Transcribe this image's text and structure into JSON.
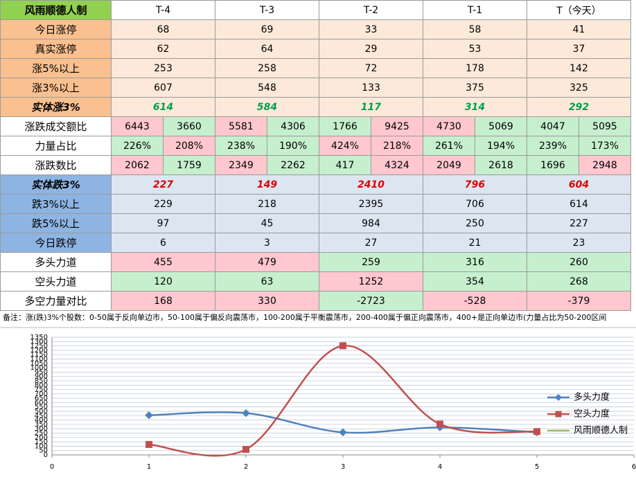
{
  "table": {
    "header": [
      "风雨顺德人制",
      "T-4",
      "T-3",
      "T-2",
      "T-1",
      "T（今天）"
    ],
    "header_fill": "#92d050",
    "rows": [
      {
        "label": "今日涨停",
        "label_fill": "#fac090",
        "values": [
          68,
          69,
          33,
          58,
          41
        ],
        "fills": [
          "#fde9d9",
          "#fde9d9",
          "#fde9d9",
          "#fde9d9",
          "#fde9d9"
        ]
      },
      {
        "label": "真实涨停",
        "label_fill": "#fac090",
        "values": [
          62,
          64,
          29,
          53,
          37
        ],
        "fills": [
          "#fde9d9",
          "#fde9d9",
          "#fde9d9",
          "#fde9d9",
          "#fde9d9"
        ]
      },
      {
        "label": "涨5%以上",
        "label_fill": "#fac090",
        "values": [
          253,
          258,
          72,
          178,
          142
        ],
        "fills": [
          "#fde9d9",
          "#fde9d9",
          "#fde9d9",
          "#fde9d9",
          "#fde9d9"
        ]
      },
      {
        "label": "涨3%以上",
        "label_fill": "#fac090",
        "values": [
          607,
          548,
          133,
          375,
          325
        ],
        "fills": [
          "#fde9d9",
          "#fde9d9",
          "#fde9d9",
          "#fde9d9",
          "#fde9d9"
        ]
      },
      {
        "label": "实体涨3%",
        "label_fill": "#fac090",
        "bold": true,
        "italic": true,
        "color": "#00a050",
        "values": [
          614,
          584,
          117,
          314,
          292
        ],
        "fills": [
          "#fde9d9",
          "#fde9d9",
          "#fde9d9",
          "#fde9d9",
          "#fde9d9"
        ]
      },
      {
        "label": "涨跌成交额比",
        "label_fill": "#ffffff",
        "values": [
          6443,
          3660,
          5581,
          4306,
          1766,
          9425,
          4730,
          5069,
          4047,
          5095
        ],
        "fills": [
          "#ffc7ce",
          "#c6efce",
          "#ffc7ce",
          "#c6efce",
          "#c6efce",
          "#ffc7ce",
          "#ffc7ce",
          "#c6efce",
          "#c6efce",
          "#c6efce"
        ]
      },
      {
        "label": "力量占比",
        "label_fill": "#ffffff",
        "values": [
          "226%",
          "208%",
          "238%",
          "190%",
          "424%",
          "218%",
          "261%",
          "194%",
          "239%",
          "173%"
        ],
        "fills": [
          "#c6efce",
          "#ffc7ce",
          "#c6efce",
          "#c6efce",
          "#ffc7ce",
          "#ffc7ce",
          "#c6efce",
          "#c6efce",
          "#c6efce",
          "#c6efce"
        ]
      },
      {
        "label": "涨跌数比",
        "label_fill": "#ffffff",
        "values": [
          2062,
          1759,
          2349,
          2262,
          417,
          4324,
          2049,
          2618,
          1696,
          2948
        ],
        "fills": [
          "#ffc7ce",
          "#c6efce",
          "#ffc7ce",
          "#c6efce",
          "#c6efce",
          "#ffc7ce",
          "#ffc7ce",
          "#c6efce",
          "#c6efce",
          "#ffc7ce"
        ]
      },
      {
        "label": "实体跌3%",
        "label_fill": "#8db4e2",
        "bold": true,
        "italic": true,
        "color": "#e00000",
        "values": [
          227,
          149,
          2410,
          796,
          604
        ],
        "fills": [
          "#dce6f1",
          "#dce6f1",
          "#dce6f1",
          "#dce6f1",
          "#dce6f1"
        ]
      },
      {
        "label": "跌3%以上",
        "label_fill": "#8db4e2",
        "values": [
          229,
          218,
          2395,
          706,
          614
        ],
        "fills": [
          "#dce6f1",
          "#dce6f1",
          "#dce6f1",
          "#dce6f1",
          "#dce6f1"
        ]
      },
      {
        "label": "跌5%以上",
        "label_fill": "#8db4e2",
        "values": [
          97,
          45,
          984,
          250,
          227
        ],
        "fills": [
          "#dce6f1",
          "#dce6f1",
          "#dce6f1",
          "#dce6f1",
          "#dce6f1"
        ]
      },
      {
        "label": "今日跌停",
        "label_fill": "#8db4e2",
        "values": [
          6,
          3,
          27,
          21,
          23
        ],
        "fills": [
          "#dce6f1",
          "#dce6f1",
          "#dce6f1",
          "#dce6f1",
          "#dce6f1"
        ]
      },
      {
        "label": "多头力道",
        "label_fill": "#ffffff",
        "values": [
          455,
          479,
          259,
          316,
          260
        ],
        "fills": [
          "#ffc7ce",
          "#ffc7ce",
          "#c6efce",
          "#c6efce",
          "#c6efce"
        ]
      },
      {
        "label": "空头力道",
        "label_fill": "#ffffff",
        "values": [
          120,
          63,
          1252,
          354,
          268
        ],
        "fills": [
          "#c6efce",
          "#c6efce",
          "#ffc7ce",
          "#c6efce",
          "#c6efce"
        ]
      },
      {
        "label": "多空力量对比",
        "label_fill": "#ffffff",
        "values": [
          168,
          330,
          -2723,
          -528,
          -379
        ],
        "fills": [
          "#ffc7ce",
          "#ffc7ce",
          "#c6efce",
          "#ffc7ce",
          "#ffc7ce"
        ]
      }
    ]
  },
  "note": "备注：涨(跌)3%个股数：0-50属于反向单边市，50-100属于偏反向震荡市，100-200属于平衡震荡市，200-400属于偏正向震荡市，400+是正向单边市(力量占比为50-200区间",
  "chart_data": {
    "type": "line",
    "smooth": true,
    "x": [
      1,
      2,
      3,
      4,
      5
    ],
    "series": [
      {
        "name": "多头力度",
        "color": "#4f81bd",
        "marker": "diamond",
        "values": [
          455,
          479,
          259,
          316,
          260
        ]
      },
      {
        "name": "空头力度",
        "color": "#c0504d",
        "marker": "square",
        "values": [
          120,
          63,
          1252,
          354,
          268
        ]
      },
      {
        "name": "风雨顺德人制",
        "color": "#9bbb59",
        "marker": "none",
        "values": [
          null,
          null,
          null,
          null,
          null
        ]
      }
    ],
    "xlim": [
      0,
      6
    ],
    "xticks": [
      0,
      1,
      2,
      3,
      4,
      5,
      6
    ],
    "ylim": [
      0,
      1350
    ],
    "yticks": [
      0,
      50,
      100,
      150,
      200,
      250,
      300,
      350,
      400,
      450,
      500,
      550,
      600,
      650,
      700,
      750,
      800,
      850,
      900,
      950,
      1000,
      1050,
      1100,
      1150,
      1200,
      1250,
      1300,
      1350
    ],
    "grid": true,
    "legend": "right"
  }
}
